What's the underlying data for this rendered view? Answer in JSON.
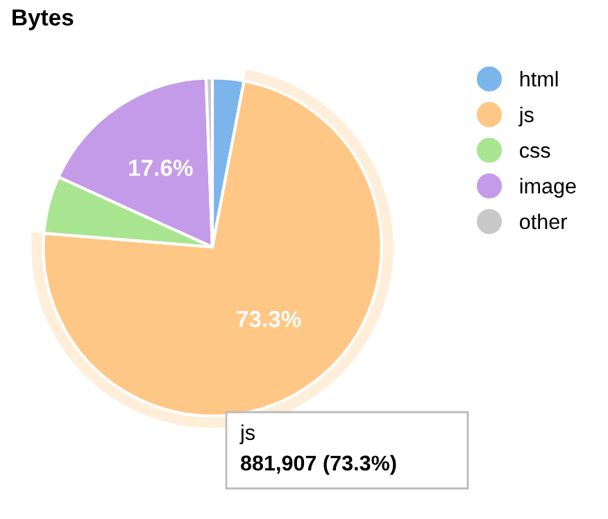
{
  "chart_data": {
    "type": "pie",
    "title": "Bytes",
    "categories": [
      "html",
      "js",
      "css",
      "image",
      "other"
    ],
    "values": [
      3.0,
      73.3,
      5.5,
      17.6,
      0.6
    ],
    "colors": [
      "#7cb5ec",
      "#ffc785",
      "#a9e591",
      "#c49be8",
      "#c8c8c8"
    ],
    "value_labels": [
      null,
      "73.3%",
      null,
      "17.6%",
      null
    ],
    "legend": "top right",
    "annotations": [
      "js",
      "881,907 (73.3%)"
    ]
  }
}
